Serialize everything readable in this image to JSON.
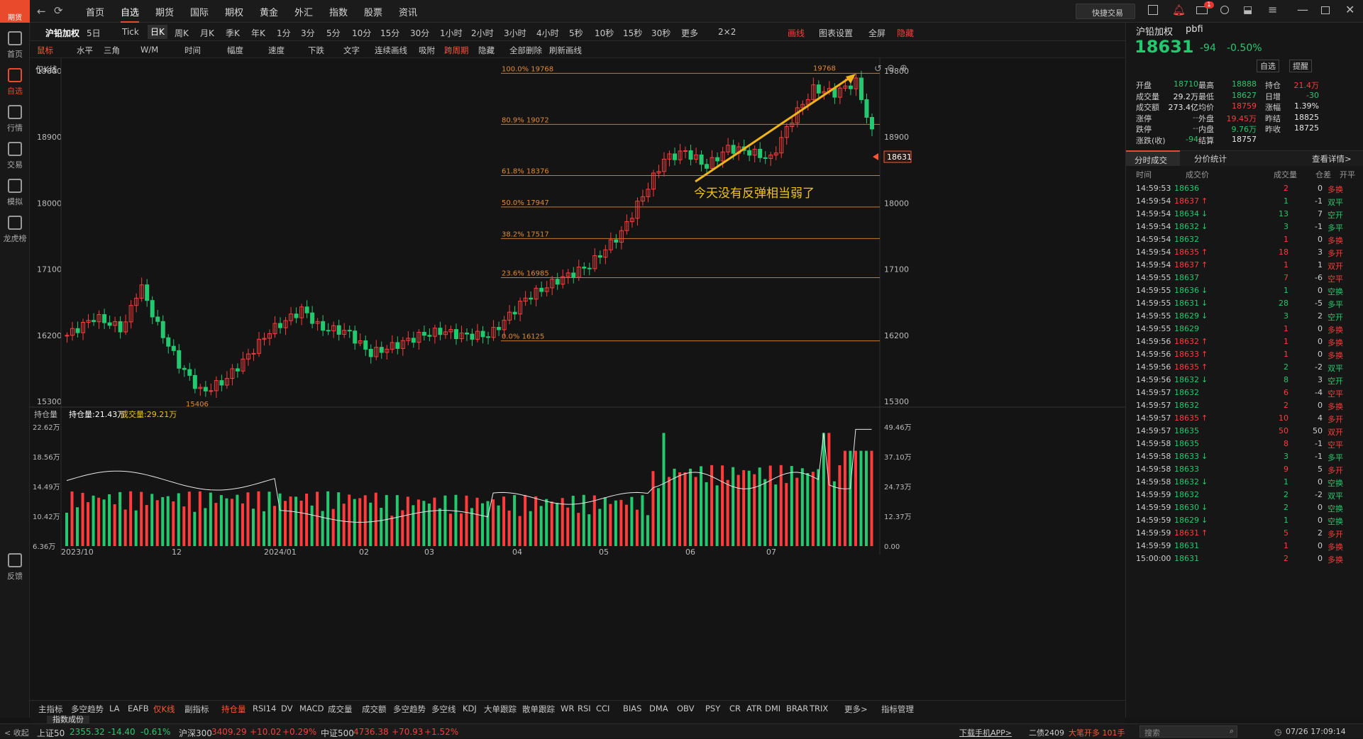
{
  "app": {
    "logo": "期货"
  },
  "topnav": [
    "首页",
    "自选",
    "期货",
    "国际",
    "期权",
    "黄金",
    "外汇",
    "指数",
    "股票",
    "资讯"
  ],
  "topnav_active": 1,
  "quick_trade": "快捷交易",
  "notify_count": "1",
  "leftnav": [
    "首页",
    "自选",
    "行情",
    "交易",
    "模拟",
    "龙虎榜",
    "反馈"
  ],
  "periods": [
    "沪铅加权",
    "5日",
    "Tick",
    "日K",
    "周K",
    "月K",
    "季K",
    "年K",
    "1分",
    "3分",
    "5分",
    "10分",
    "15分",
    "30分",
    "1小时",
    "2小时",
    "3小时",
    "4小时",
    "5秒",
    "10秒",
    "15秒",
    "30秒",
    "更多",
    "2×2"
  ],
  "period_active": "日K",
  "period_right": {
    "draw": "画线",
    "settings": "图表设置",
    "fullscreen": "全屏",
    "hide": "隐藏"
  },
  "tools": [
    "鼠标",
    "水平",
    "三角",
    "W/M",
    "时间",
    "幅度",
    "速度",
    "下跌",
    "文字",
    "连续画线",
    "吸附",
    "跨周期",
    "隐藏",
    "全部删除",
    "刷新画线"
  ],
  "chart_head": "仅K线",
  "annotation": "今天没有反弹相当弱了",
  "price_axis": [
    "19800",
    "18900",
    "18000",
    "17100",
    "16200",
    "15300"
  ],
  "high_label": "19768",
  "low_label": "15406",
  "last_price_tag": "18631",
  "fib_levels": [
    {
      "label": "100.0% 19768",
      "price": 19768
    },
    {
      "label": "80.9% 19072",
      "price": 19072
    },
    {
      "label": "61.8% 18376",
      "price": 18376
    },
    {
      "label": "50.0% 17947",
      "price": 17947
    },
    {
      "label": "38.2% 17517",
      "price": 17517
    },
    {
      "label": "23.6% 16985",
      "price": 16985
    },
    {
      "label": "0.0% 16125",
      "price": 16125
    }
  ],
  "sub": {
    "label": "持仓量",
    "oi": "持仓量:21.43万",
    "vol": "成交量:29.21万",
    "left_axis": [
      "22.62万",
      "18.56万",
      "14.49万",
      "10.42万",
      "6.36万"
    ],
    "right_axis": [
      "49.46万",
      "37.10万",
      "24.73万",
      "12.37万",
      "0.00"
    ]
  },
  "date_axis": [
    "2023/10",
    "12",
    "2024/01",
    "02",
    "03",
    "04",
    "05",
    "06",
    "07"
  ],
  "indicators": [
    "主指标",
    "多空趋势",
    "LA",
    "EAFB",
    "仅K线",
    "副指标",
    "持仓量",
    "RSI14",
    "DV",
    "MACD",
    "成交量",
    "成交额",
    "多空趋势",
    "多空线",
    "KDJ",
    "大单跟踪",
    "散单跟踪",
    "WR",
    "RSI",
    "CCI",
    "BIAS",
    "DMA",
    "OBV",
    "PSY",
    "CR",
    "ATR",
    "DMI",
    "BRAR",
    "TRIX",
    "更多>",
    "指标管理"
  ],
  "index_tab": "指数成份",
  "quote": {
    "name": "沪铅加权",
    "code": "pbfi",
    "price": "18631",
    "change": "-94",
    "pct": "-0.50%",
    "btn_fav": "自选",
    "btn_alert": "提醒",
    "rows": [
      [
        "开盘",
        "18710",
        "最高",
        "18888",
        "持仓",
        "21.4万"
      ],
      [
        "成交量",
        "29.2万",
        "最低",
        "18627",
        "日增",
        "-30"
      ],
      [
        "成交额",
        "273.4亿",
        "均价",
        "18759",
        "涨幅",
        "1.39%"
      ],
      [
        "涨停",
        "--",
        "外盘",
        "19.45万",
        "昨结",
        "18825"
      ],
      [
        "跌停",
        "--",
        "内盘",
        "9.76万",
        "昨收",
        "18725"
      ],
      [
        "涨跌(收)",
        "-94",
        "结算",
        "18757",
        "",
        ""
      ]
    ]
  },
  "trade_tabs": [
    "分时成交",
    "分价统计",
    "查看详情>"
  ],
  "trade_headers": [
    "时间",
    "成交价",
    "成交量",
    "仓差",
    "开平"
  ],
  "trades": [
    [
      "14:59:53",
      "18636",
      "",
      "2",
      "0",
      "多换"
    ],
    [
      "14:59:54",
      "18637",
      "↑",
      "1",
      "-1",
      "双平"
    ],
    [
      "14:59:54",
      "18634",
      "↓",
      "13",
      "7",
      "空开"
    ],
    [
      "14:59:54",
      "18632",
      "↓",
      "3",
      "-1",
      "多平"
    ],
    [
      "14:59:54",
      "18632",
      "",
      "1",
      "0",
      "多换"
    ],
    [
      "14:59:54",
      "18635",
      "↑",
      "18",
      "3",
      "多开"
    ],
    [
      "14:59:54",
      "18637",
      "↑",
      "1",
      "1",
      "双开"
    ],
    [
      "14:59:55",
      "18637",
      "",
      "7",
      "-6",
      "空平"
    ],
    [
      "14:59:55",
      "18636",
      "↓",
      "1",
      "0",
      "空换"
    ],
    [
      "14:59:55",
      "18631",
      "↓",
      "28",
      "-5",
      "多平"
    ],
    [
      "14:59:55",
      "18629",
      "↓",
      "3",
      "2",
      "空开"
    ],
    [
      "14:59:55",
      "18629",
      "",
      "1",
      "0",
      "多换"
    ],
    [
      "14:59:56",
      "18632",
      "↑",
      "1",
      "0",
      "多换"
    ],
    [
      "14:59:56",
      "18633",
      "↑",
      "1",
      "0",
      "多换"
    ],
    [
      "14:59:56",
      "18635",
      "↑",
      "2",
      "-2",
      "双平"
    ],
    [
      "14:59:56",
      "18632",
      "↓",
      "8",
      "3",
      "空开"
    ],
    [
      "14:59:57",
      "18632",
      "",
      "6",
      "-4",
      "空平"
    ],
    [
      "14:59:57",
      "18632",
      "",
      "2",
      "0",
      "多换"
    ],
    [
      "14:59:57",
      "18635",
      "↑",
      "10",
      "4",
      "多开"
    ],
    [
      "14:59:57",
      "18635",
      "",
      "50",
      "50",
      "双开"
    ],
    [
      "14:59:58",
      "18635",
      "",
      "8",
      "-1",
      "空平"
    ],
    [
      "14:59:58",
      "18633",
      "↓",
      "3",
      "-1",
      "多平"
    ],
    [
      "14:59:58",
      "18633",
      "",
      "9",
      "5",
      "多开"
    ],
    [
      "14:59:58",
      "18632",
      "↓",
      "1",
      "0",
      "空换"
    ],
    [
      "14:59:59",
      "18632",
      "",
      "2",
      "-2",
      "双平"
    ],
    [
      "14:59:59",
      "18630",
      "↓",
      "2",
      "0",
      "空换"
    ],
    [
      "14:59:59",
      "18629",
      "↓",
      "1",
      "0",
      "空换"
    ],
    [
      "14:59:59",
      "18631",
      "↑",
      "5",
      "2",
      "多开"
    ],
    [
      "14:59:59",
      "18631",
      "",
      "1",
      "0",
      "多换"
    ],
    [
      "15:00:00",
      "18631",
      "",
      "2",
      "0",
      "多换"
    ]
  ],
  "bottom": {
    "collapse": "< 收起",
    "indices": [
      {
        "name": "上证50",
        "val": "2355.32",
        "chg": "-14.40",
        "pct": "-0.61%",
        "color": "#22c96e"
      },
      {
        "name": "沪深300",
        "val": "3409.29",
        "chg": "+10.02",
        "pct": "+0.29%",
        "color": "#ff3b3b"
      },
      {
        "name": "中证500",
        "val": "4736.38",
        "chg": "+70.93",
        "pct": "+1.52%",
        "color": "#ff3b3b"
      }
    ],
    "app_dl": "下载手机APP>",
    "ticker": "二债2409",
    "ticker_note": "大笔开多 101手",
    "search": "搜索",
    "datetime": "07/26 17:09:14"
  }
}
